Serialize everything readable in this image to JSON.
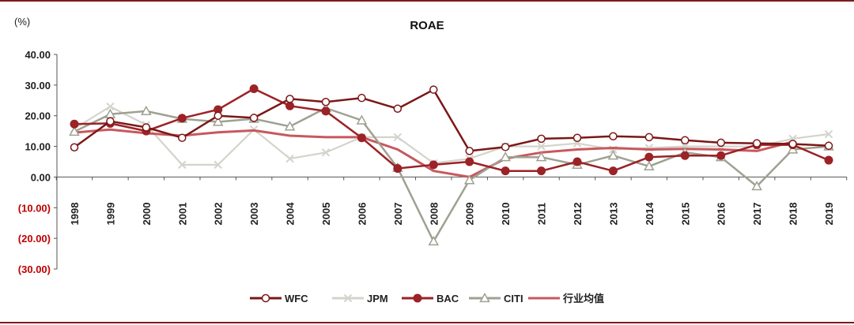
{
  "chart_data": {
    "type": "line",
    "title": "ROAE",
    "unit_label": "(%)",
    "ylim": [
      -30,
      40
    ],
    "y_ticks": [
      40,
      30,
      20,
      10,
      0,
      -10,
      -20,
      -30
    ],
    "y_tick_labels": [
      "40.00",
      "30.00",
      "20.00",
      "10.00",
      "0.00",
      "(10.00)",
      "(20.00)",
      "(30.00)"
    ],
    "negative_tick_color": "#c00000",
    "categories": [
      "1998",
      "1999",
      "2000",
      "2001",
      "2002",
      "2003",
      "2004",
      "2005",
      "2006",
      "2007",
      "2008",
      "2009",
      "2010",
      "2011",
      "2012",
      "2013",
      "2014",
      "2015",
      "2016",
      "2017",
      "2018",
      "2019"
    ],
    "grid": false,
    "legend_position": "bottom",
    "series": [
      {
        "name": "WFC",
        "color": "#7b1717",
        "marker": "circle-open",
        "values": [
          9.7,
          18.2,
          16.2,
          12.8,
          20.0,
          19.3,
          25.5,
          24.5,
          25.8,
          22.3,
          28.5,
          8.5,
          9.8,
          12.5,
          12.8,
          13.3,
          13.0,
          12.0,
          11.2,
          11.0,
          10.8,
          10.2
        ]
      },
      {
        "name": "JPM",
        "color": "#d4d4cc",
        "marker": "x",
        "values": [
          15.8,
          23.0,
          17.0,
          4.0,
          4.0,
          15.5,
          6.0,
          8.0,
          13.0,
          13.0,
          4.5,
          6.0,
          10.0,
          10.0,
          11.0,
          9.0,
          9.5,
          10.0,
          10.0,
          10.0,
          12.5,
          14.0
        ]
      },
      {
        "name": "BAC",
        "color": "#9b2226",
        "marker": "circle-filled",
        "values": [
          17.3,
          17.5,
          15.0,
          19.2,
          22.0,
          28.8,
          23.2,
          21.5,
          12.8,
          2.8,
          4.0,
          5.0,
          2.0,
          2.0,
          5.0,
          2.0,
          6.5,
          7.0,
          7.0,
          10.5,
          10.5,
          5.5
        ]
      },
      {
        "name": "CITI",
        "color": "#9ea192",
        "marker": "triangle-open",
        "values": [
          14.8,
          20.5,
          21.5,
          19.0,
          18.0,
          19.0,
          16.5,
          22.5,
          18.5,
          3.0,
          -21.0,
          -1.0,
          6.5,
          6.5,
          4.0,
          7.0,
          3.5,
          8.0,
          6.5,
          -3.0,
          9.0,
          10.0
        ]
      },
      {
        "name": "行业均值",
        "color": "#c8585e",
        "marker": "none",
        "values": [
          14.5,
          15.5,
          14.3,
          13.5,
          14.6,
          15.2,
          13.5,
          13.0,
          13.0,
          9.0,
          2.0,
          0.0,
          6.0,
          8.0,
          9.0,
          9.5,
          9.0,
          9.2,
          9.0,
          8.5,
          11.5,
          null
        ]
      }
    ]
  }
}
